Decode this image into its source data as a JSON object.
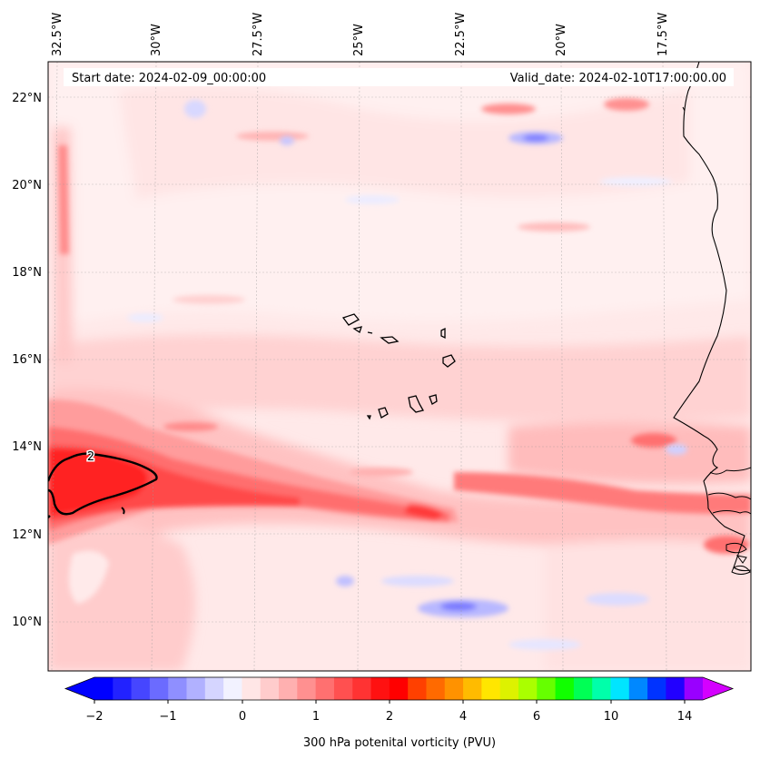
{
  "map": {
    "start_date_text": "Start date: 2024-02-09_00:00:00",
    "valid_date_text": "Valid_date: 2024-02-10T17:00:00.00",
    "lon_labels": [
      "32.5°W",
      "30°W",
      "27.5°W",
      "25°W",
      "22.5°W",
      "20°W",
      "17.5°W"
    ],
    "lat_labels": [
      "22°N",
      "20°N",
      "18°N",
      "16°N",
      "14°N",
      "12°N",
      "10°N"
    ],
    "contour_label": "2",
    "extent": {
      "lon_min": -33,
      "lon_max": -15.5,
      "lat_min": 9,
      "lat_max": 22.8
    }
  },
  "colorbar": {
    "label": "300 hPa potenital vorticity (PVU)",
    "tick_labels": [
      "−2",
      "−1",
      "0",
      "1",
      "2",
      "4",
      "6",
      "10",
      "14"
    ],
    "colors": [
      "#0000ff",
      "#2222ff",
      "#4646ff",
      "#6b6bff",
      "#8f8fff",
      "#b1b1ff",
      "#d5d5ff",
      "#f2f2ff",
      "#ffe6e6",
      "#ffcccc",
      "#ffb0b0",
      "#ff9090",
      "#ff7070",
      "#ff5050",
      "#ff3333",
      "#ff1111",
      "#ff0000",
      "#ff4000",
      "#ff6a00",
      "#ff9200",
      "#ffbb00",
      "#ffe600",
      "#ddf200",
      "#aaff00",
      "#66ff00",
      "#11ff00",
      "#00ff55",
      "#00ffaa",
      "#00e5ff",
      "#0088ff",
      "#0033ff",
      "#2200ff",
      "#9900ff"
    ],
    "extend_low_color": "#0000ff",
    "extend_high_color": "#d400ff"
  }
}
